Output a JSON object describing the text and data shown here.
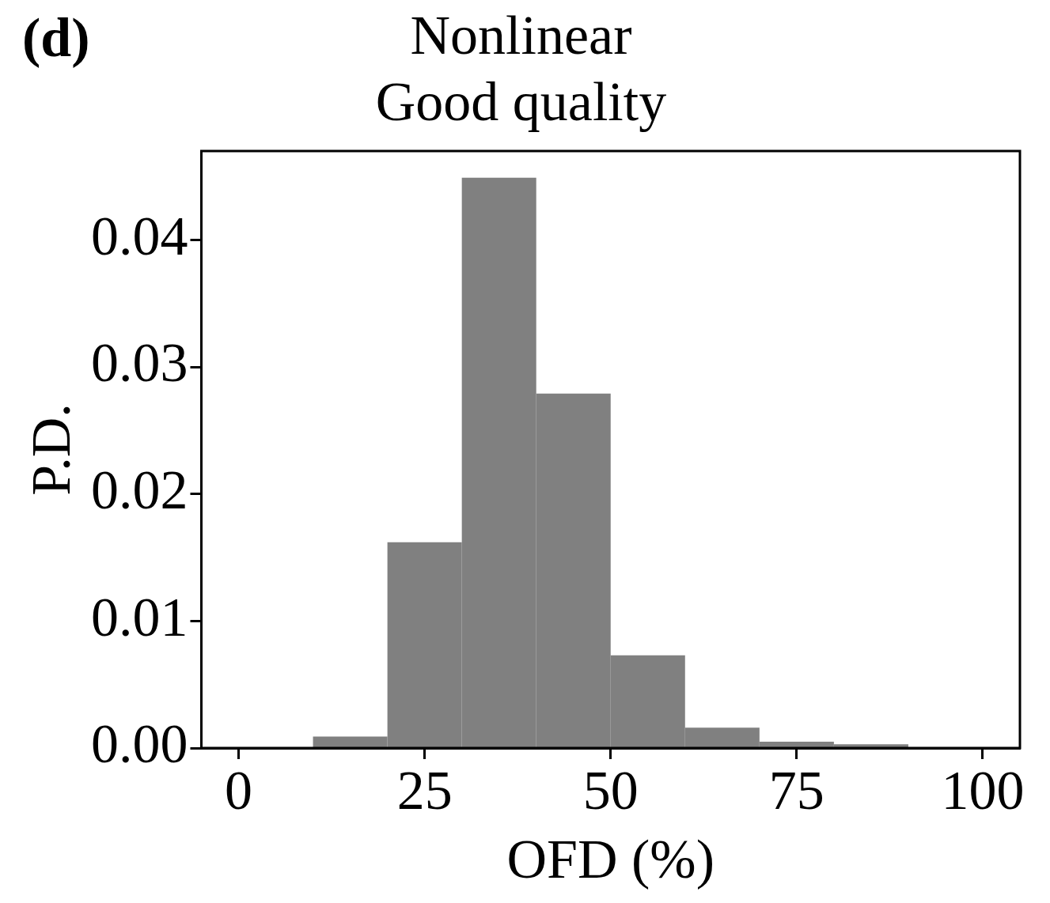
{
  "chart_data": {
    "type": "histogram",
    "title": "Nonlinear\nGood quality",
    "xlabel": "OFD (%)",
    "ylabel": "P.D.",
    "annotations": [
      "(d)"
    ],
    "bins": [
      10,
      20,
      30,
      40,
      50,
      60,
      70,
      80,
      90
    ],
    "values": [
      0.0009,
      0.0162,
      0.0449,
      0.0279,
      0.0073,
      0.0016,
      0.0005,
      0.0003
    ],
    "color": "#808080",
    "xlim": [
      -5,
      105
    ],
    "ylim": [
      0,
      0.047
    ],
    "xticks": [
      0,
      25,
      50,
      75,
      100
    ],
    "yticks": [
      {
        "value": 0,
        "label": "0.00"
      },
      {
        "value": 0.01,
        "label": "0.01"
      },
      {
        "value": 0.02,
        "label": "0.02"
      },
      {
        "value": 0.03,
        "label": "0.03"
      },
      {
        "value": 0.04,
        "label": "0.04"
      }
    ],
    "grid": false,
    "legend": false
  }
}
